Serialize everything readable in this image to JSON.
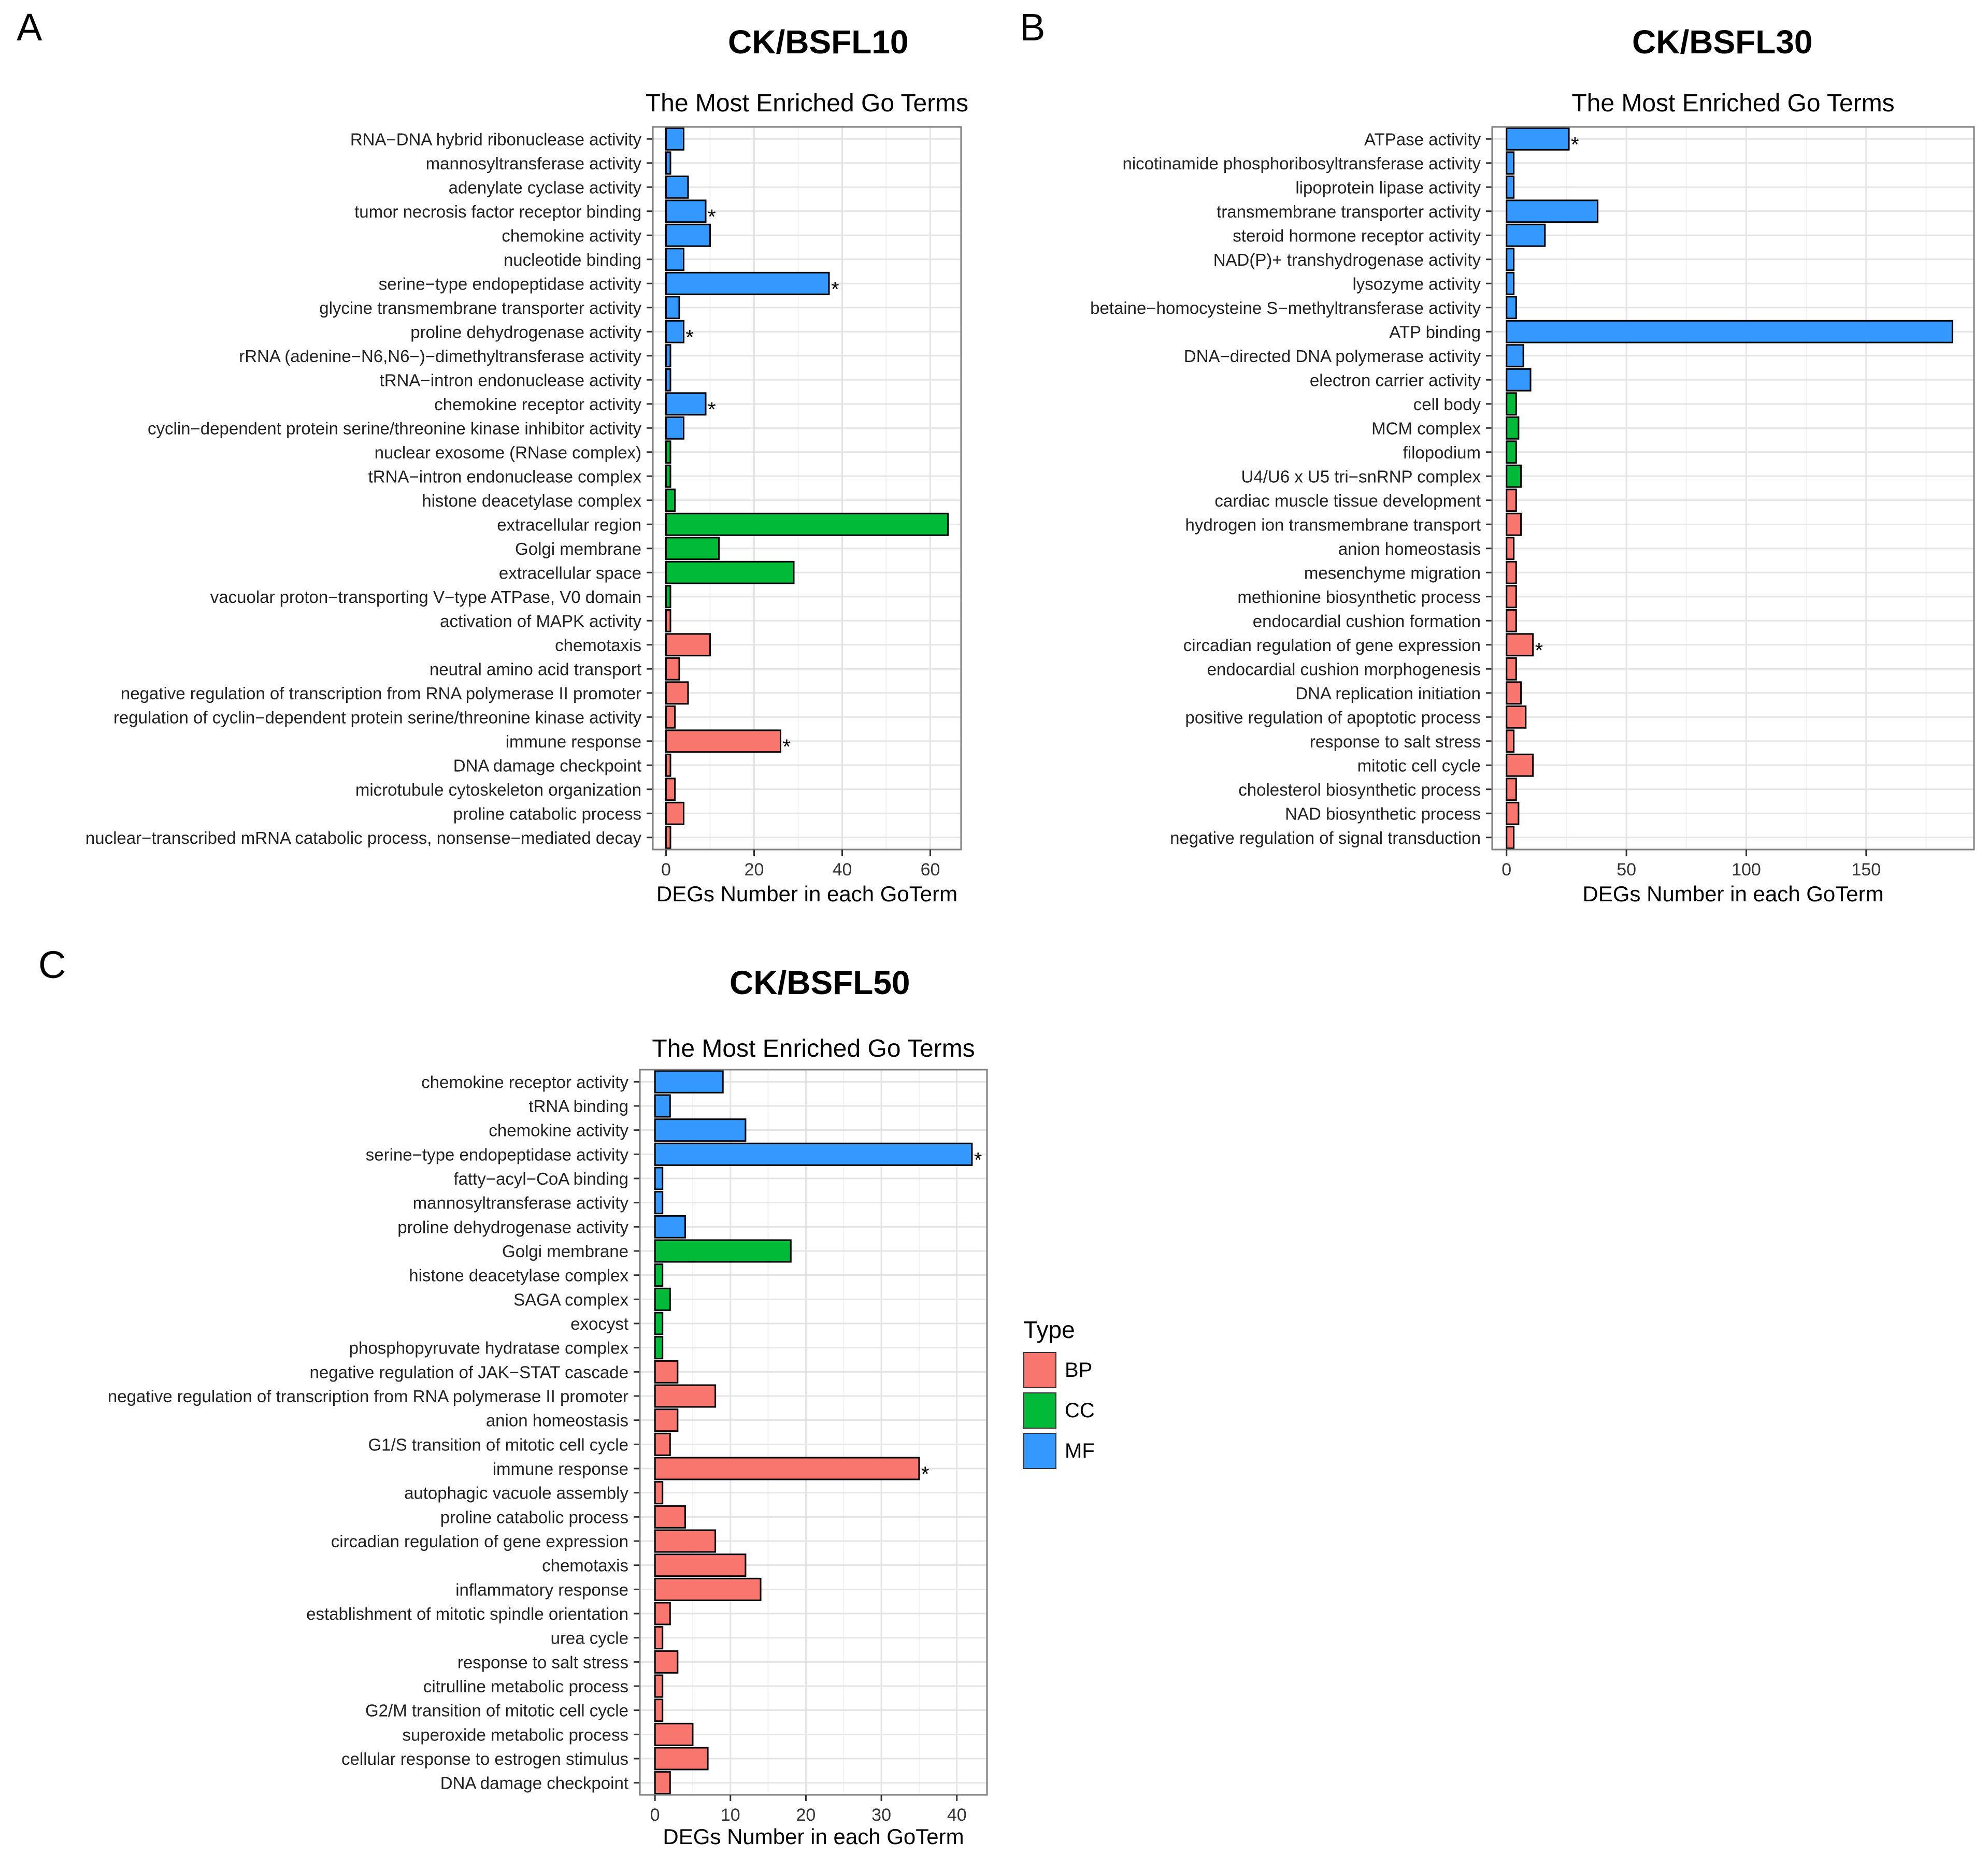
{
  "panels": [
    {
      "letter": "A",
      "title": "CK/BSFL10"
    },
    {
      "letter": "B",
      "title": "CK/BSFL30"
    },
    {
      "letter": "C",
      "title": "CK/BSFL50"
    }
  ],
  "legend": {
    "title": "Type",
    "items": [
      {
        "label": "BP",
        "color": "#F8766D"
      },
      {
        "label": "CC",
        "color": "#00BA38"
      },
      {
        "label": "MF",
        "color": "#3399FF"
      }
    ]
  },
  "colors": {
    "BP": "#F8766D",
    "CC": "#00BA38",
    "MF": "#3399FF"
  },
  "chart_data": [
    {
      "type": "bar",
      "orientation": "horizontal",
      "title": "The Most Enriched Go Terms",
      "xlabel": "DEGs Number in each GoTerm",
      "xlim": [
        -3,
        67
      ],
      "xticks": [
        0,
        20,
        40,
        60
      ],
      "grid": true,
      "categories": [
        "RNA−DNA hybrid ribonuclease activity",
        "mannosyltransferase activity",
        "adenylate cyclase activity",
        "tumor necrosis factor receptor binding",
        "chemokine activity",
        "nucleotide binding",
        "serine−type endopeptidase activity",
        "glycine transmembrane transporter activity",
        "proline dehydrogenase activity",
        "rRNA (adenine−N6,N6−)−dimethyltransferase activity",
        "tRNA−intron endonuclease activity",
        "chemokine receptor activity",
        "cyclin−dependent protein serine/threonine kinase inhibitor activity",
        "nuclear exosome (RNase complex)",
        "tRNA−intron endonuclease complex",
        "histone deacetylase complex",
        "extracellular region",
        "Golgi membrane",
        "extracellular space",
        "vacuolar proton−transporting V−type ATPase, V0 domain",
        "activation of MAPK activity",
        "chemotaxis",
        "neutral amino acid transport",
        "negative regulation of transcription from RNA polymerase II promoter",
        "regulation of cyclin−dependent protein serine/threonine kinase activity",
        "immune response",
        "DNA damage checkpoint",
        "microtubule cytoskeleton organization",
        "proline catabolic process",
        "nuclear−transcribed mRNA catabolic process, nonsense−mediated decay"
      ],
      "values": [
        4,
        1,
        5,
        9,
        10,
        4,
        37,
        3,
        4,
        1,
        1,
        9,
        4,
        1,
        1,
        2,
        64,
        12,
        29,
        1,
        1,
        10,
        3,
        5,
        2,
        26,
        1,
        2,
        4,
        1
      ],
      "types": [
        "MF",
        "MF",
        "MF",
        "MF",
        "MF",
        "MF",
        "MF",
        "MF",
        "MF",
        "MF",
        "MF",
        "MF",
        "MF",
        "CC",
        "CC",
        "CC",
        "CC",
        "CC",
        "CC",
        "CC",
        "BP",
        "BP",
        "BP",
        "BP",
        "BP",
        "BP",
        "BP",
        "BP",
        "BP",
        "BP"
      ],
      "significant": [
        false,
        false,
        false,
        true,
        false,
        false,
        true,
        false,
        true,
        false,
        false,
        true,
        false,
        false,
        false,
        false,
        false,
        false,
        false,
        false,
        false,
        false,
        false,
        false,
        false,
        true,
        false,
        false,
        false,
        false
      ]
    },
    {
      "type": "bar",
      "orientation": "horizontal",
      "title": "The Most Enriched Go Terms",
      "xlabel": "DEGs Number in each GoTerm",
      "xlim": [
        -6,
        195
      ],
      "xticks": [
        0,
        50,
        100,
        150
      ],
      "grid": true,
      "categories": [
        "ATPase activity",
        "nicotinamide phosphoribosyltransferase activity",
        "lipoprotein lipase activity",
        "transmembrane transporter activity",
        "steroid hormone receptor activity",
        "NAD(P)+ transhydrogenase activity",
        "lysozyme activity",
        "betaine−homocysteine S−methyltransferase activity",
        "ATP binding",
        "DNA−directed DNA polymerase activity",
        "electron carrier activity",
        "cell body",
        "MCM complex",
        "filopodium",
        "U4/U6 x U5 tri−snRNP complex",
        "cardiac muscle tissue development",
        "hydrogen ion transmembrane transport",
        "anion homeostasis",
        "mesenchyme migration",
        "methionine biosynthetic process",
        "endocardial cushion formation",
        "circadian regulation of gene expression",
        "endocardial cushion morphogenesis",
        "DNA replication initiation",
        "positive regulation of apoptotic process",
        "response to salt stress",
        "mitotic cell cycle",
        "cholesterol biosynthetic process",
        "NAD biosynthetic process",
        "negative regulation of signal transduction"
      ],
      "values": [
        26,
        3,
        3,
        38,
        16,
        3,
        3,
        4,
        186,
        7,
        10,
        4,
        5,
        4,
        6,
        4,
        6,
        3,
        4,
        4,
        4,
        11,
        4,
        6,
        8,
        3,
        11,
        4,
        5,
        3
      ],
      "types": [
        "MF",
        "MF",
        "MF",
        "MF",
        "MF",
        "MF",
        "MF",
        "MF",
        "MF",
        "MF",
        "MF",
        "CC",
        "CC",
        "CC",
        "CC",
        "BP",
        "BP",
        "BP",
        "BP",
        "BP",
        "BP",
        "BP",
        "BP",
        "BP",
        "BP",
        "BP",
        "BP",
        "BP",
        "BP",
        "BP"
      ],
      "significant": [
        true,
        false,
        false,
        false,
        false,
        false,
        false,
        false,
        false,
        false,
        false,
        false,
        false,
        false,
        false,
        false,
        false,
        false,
        false,
        false,
        false,
        true,
        false,
        false,
        false,
        false,
        false,
        false,
        false,
        false
      ]
    },
    {
      "type": "bar",
      "orientation": "horizontal",
      "title": "The Most Enriched Go Terms",
      "xlabel": "DEGs Number in each GoTerm",
      "xlim": [
        -2,
        44
      ],
      "xticks": [
        0,
        10,
        20,
        30,
        40
      ],
      "grid": true,
      "categories": [
        "chemokine receptor activity",
        "tRNA binding",
        "chemokine activity",
        "serine−type endopeptidase activity",
        "fatty−acyl−CoA binding",
        "mannosyltransferase activity",
        "proline dehydrogenase activity",
        "Golgi membrane",
        "histone deacetylase complex",
        "SAGA complex",
        "exocyst",
        "phosphopyruvate hydratase complex",
        "negative regulation of JAK−STAT cascade",
        "negative regulation of transcription from RNA polymerase II promoter",
        "anion homeostasis",
        "G1/S transition of mitotic cell cycle",
        "immune response",
        "autophagic vacuole assembly",
        "proline catabolic process",
        "circadian regulation of gene expression",
        "chemotaxis",
        "inflammatory response",
        "establishment of mitotic spindle orientation",
        "urea cycle",
        "response to salt stress",
        "citrulline metabolic process",
        "G2/M transition of mitotic cell cycle",
        "superoxide metabolic process",
        "cellular response to estrogen stimulus",
        "DNA damage checkpoint"
      ],
      "values": [
        9,
        2,
        12,
        42,
        1,
        1,
        4,
        18,
        1,
        2,
        1,
        1,
        3,
        8,
        3,
        2,
        35,
        1,
        4,
        8,
        12,
        14,
        2,
        1,
        3,
        1,
        1,
        5,
        7,
        2
      ],
      "types": [
        "MF",
        "MF",
        "MF",
        "MF",
        "MF",
        "MF",
        "MF",
        "CC",
        "CC",
        "CC",
        "CC",
        "CC",
        "BP",
        "BP",
        "BP",
        "BP",
        "BP",
        "BP",
        "BP",
        "BP",
        "BP",
        "BP",
        "BP",
        "BP",
        "BP",
        "BP",
        "BP",
        "BP",
        "BP",
        "BP"
      ],
      "significant": [
        false,
        false,
        false,
        true,
        false,
        false,
        false,
        false,
        false,
        false,
        false,
        false,
        false,
        false,
        false,
        false,
        true,
        false,
        false,
        false,
        false,
        false,
        false,
        false,
        false,
        false,
        false,
        false,
        false,
        false
      ]
    }
  ]
}
